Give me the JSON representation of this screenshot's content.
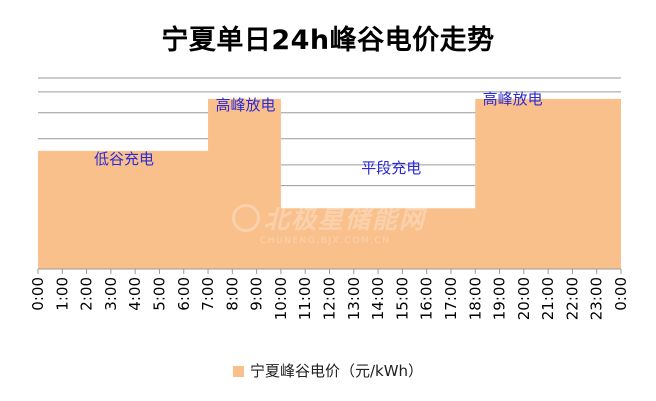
{
  "chart_data": {
    "type": "area",
    "title": "宁夏单日24h峰谷电价走势",
    "xlabel": "",
    "ylabel": "",
    "categories": [
      "0:00",
      "1:00",
      "2:00",
      "3:00",
      "4:00",
      "5:00",
      "6:00",
      "7:00",
      "8:00",
      "9:00",
      "10:00",
      "11:00",
      "12:00",
      "13:00",
      "14:00",
      "15:00",
      "16:00",
      "17:00",
      "18:00",
      "19:00",
      "20:00",
      "21:00",
      "22:00",
      "23:00",
      "0:00"
    ],
    "series": [
      {
        "name": "宁夏峰谷电价（元/kWh）",
        "values": [
          0.68,
          0.68,
          0.68,
          0.68,
          0.68,
          0.68,
          0.68,
          0.98,
          0.98,
          0.98,
          0.35,
          0.35,
          0.35,
          0.35,
          0.35,
          0.35,
          0.35,
          0.35,
          0.98,
          0.98,
          0.98,
          0.98,
          0.98,
          0.98,
          0.68
        ]
      }
    ],
    "ylim": [
      0,
      1.1
    ],
    "gridlines": [
      0.3,
      0.48,
      0.6,
      0.75,
      0.9,
      1.02
    ],
    "grid": true,
    "fill_color": "#F9C08C",
    "legend_position": "bottom",
    "annotations": [
      {
        "text": "低谷充电",
        "at_category": "3:00"
      },
      {
        "text": "高峰放电",
        "at_category": "8:00"
      },
      {
        "text": "平段充电",
        "at_category": "14:00"
      },
      {
        "text": "高峰放电",
        "at_category": "19:00"
      }
    ]
  },
  "watermark": {
    "main": "北极星储能网",
    "sub": "CHUNENG.BJX.COM.CN"
  }
}
